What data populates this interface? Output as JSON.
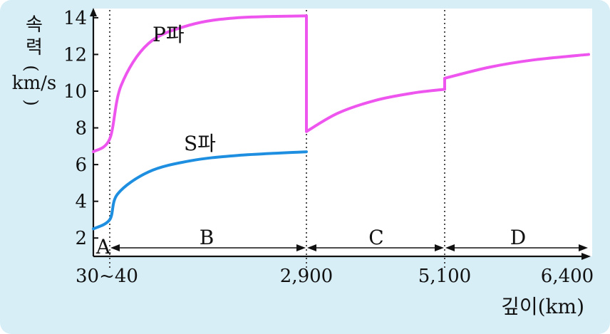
{
  "chart_data": {
    "type": "line",
    "ylabel_chars": [
      "속",
      "력"
    ],
    "ylabel_unit_top": "(",
    "ylabel_unit": "km/s",
    "ylabel_unit_bottom": ")",
    "xlabel": "깊이(km)",
    "ylim": [
      1,
      14.5
    ],
    "y_ticks": [
      2,
      4,
      6,
      8,
      10,
      12,
      14
    ],
    "x_tick_labels": [
      "30~40",
      "2,900",
      "5,100",
      "6,400"
    ],
    "layer_labels": [
      "A",
      "B",
      "C",
      "D"
    ],
    "grid": false,
    "series": [
      {
        "name": "P파",
        "color": "#ee55ee",
        "segments": [
          [
            [
              0,
              6.7
            ],
            [
              35,
              7.4
            ],
            [
              200,
              10.3
            ],
            [
              600,
              12.6
            ],
            [
              1200,
              13.6
            ],
            [
              1900,
              14.0
            ],
            [
              2900,
              14.1
            ]
          ],
          [
            [
              2900,
              7.8
            ],
            [
              3400,
              8.8
            ],
            [
              4000,
              9.5
            ],
            [
              4600,
              9.9
            ],
            [
              5100,
              10.1
            ]
          ],
          [
            [
              5100,
              10.7
            ],
            [
              5500,
              11.3
            ],
            [
              5900,
              11.7
            ],
            [
              6400,
              12.0
            ]
          ]
        ]
      },
      {
        "name": "S파",
        "color": "#1e8fe0",
        "segments": [
          [
            [
              0,
              2.5
            ],
            [
              35,
              3.0
            ],
            [
              150,
              4.4
            ],
            [
              600,
              5.6
            ],
            [
              1200,
              6.2
            ],
            [
              1900,
              6.5
            ],
            [
              2900,
              6.7
            ]
          ]
        ]
      }
    ]
  }
}
